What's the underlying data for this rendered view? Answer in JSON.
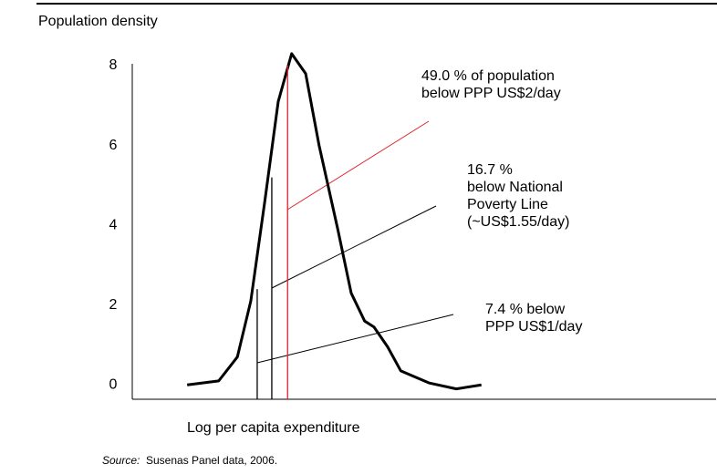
{
  "chart_data": {
    "type": "line",
    "y_label": "Population density",
    "x_label": "Log per capita expenditure",
    "source_label": "Source:",
    "source_text": "Susenas Panel data, 2006.",
    "xlim": [
      0,
      100
    ],
    "ylim": [
      -0.36,
      8.4
    ],
    "yticks": [
      0,
      2,
      4,
      6,
      8
    ],
    "x": [
      9.4,
      14.8,
      18,
      20.3,
      22.7,
      25,
      27.3,
      29.7,
      32,
      35.2,
      37.5,
      39.8,
      41.4,
      43.75,
      46,
      50.8,
      55.5,
      59.8
    ],
    "series": [
      {
        "color": "#000000",
        "values": [
          0,
          0.1,
          0.7,
          2.1,
          4.6,
          7.1,
          8.3,
          7.8,
          6.0,
          3.9,
          2.3,
          1.6,
          1.45,
          0.95,
          0.35,
          0.05,
          -0.1,
          0
        ]
      }
    ],
    "thresholds": [
      {
        "x": 21.4,
        "y": 2.4,
        "color": "#000000"
      },
      {
        "x": 23.9,
        "y": 5.2,
        "color": "#000000"
      },
      {
        "x": 26.6,
        "y": 8.0,
        "color": "#e0202a"
      }
    ],
    "annotations": [
      {
        "lines": [
          "7.4 % below",
          "PPP US$1/day"
        ],
        "color": "#000000"
      },
      {
        "lines": [
          "16.7 %",
          "below National",
          "Poverty Line",
          "(~US$1.55/day)"
        ],
        "color": "#000000"
      },
      {
        "lines": [
          "49.0 % of population",
          "below PPP US$2/day"
        ],
        "color": "#e0202a"
      }
    ]
  }
}
